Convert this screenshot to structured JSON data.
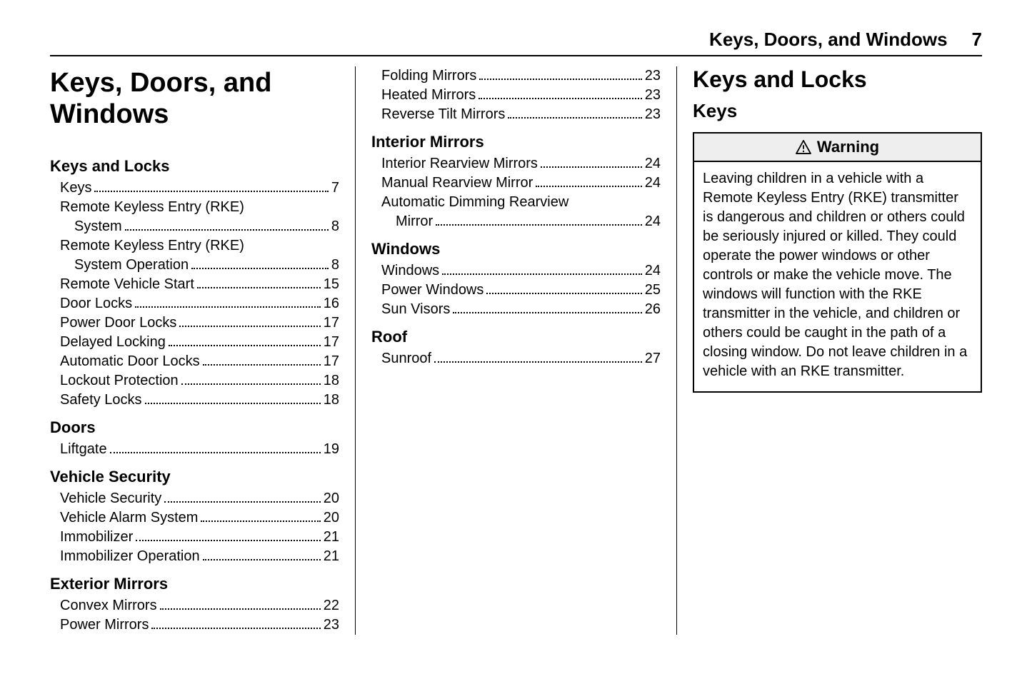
{
  "header": {
    "title": "Keys, Doors, and Windows",
    "page": "7"
  },
  "chapter_title": "Keys, Doors, and Windows",
  "toc": {
    "col1": [
      {
        "heading": "Keys and Locks",
        "items": [
          {
            "label": "Keys",
            "page": "7"
          },
          {
            "label_line1": "Remote Keyless Entry (RKE)",
            "label_line2": "System",
            "page": "8"
          },
          {
            "label_line1": "Remote Keyless Entry (RKE)",
            "label_line2": "System Operation",
            "page": "8"
          },
          {
            "label": "Remote Vehicle Start",
            "page": "15"
          },
          {
            "label": "Door Locks",
            "page": "16"
          },
          {
            "label": "Power Door Locks",
            "page": "17"
          },
          {
            "label": "Delayed Locking",
            "page": "17"
          },
          {
            "label": "Automatic Door Locks",
            "page": "17"
          },
          {
            "label": "Lockout Protection",
            "page": "18"
          },
          {
            "label": "Safety Locks",
            "page": "18"
          }
        ]
      },
      {
        "heading": "Doors",
        "items": [
          {
            "label": "Liftgate",
            "page": "19"
          }
        ]
      },
      {
        "heading": "Vehicle Security",
        "items": [
          {
            "label": "Vehicle Security",
            "page": "20"
          },
          {
            "label": "Vehicle Alarm System",
            "page": "20"
          },
          {
            "label": "Immobilizer",
            "page": "21"
          },
          {
            "label": "Immobilizer Operation",
            "page": "21"
          }
        ]
      },
      {
        "heading": "Exterior Mirrors",
        "items": [
          {
            "label": "Convex Mirrors",
            "page": "22"
          },
          {
            "label": "Power Mirrors",
            "page": "23"
          }
        ]
      }
    ],
    "col2_top": [
      {
        "label": "Folding Mirrors",
        "page": "23"
      },
      {
        "label": "Heated Mirrors",
        "page": "23"
      },
      {
        "label": "Reverse Tilt Mirrors",
        "page": "23"
      }
    ],
    "col2": [
      {
        "heading": "Interior Mirrors",
        "items": [
          {
            "label": "Interior Rearview Mirrors",
            "page": "24"
          },
          {
            "label": "Manual Rearview Mirror",
            "page": "24"
          },
          {
            "label_line1": "Automatic Dimming Rearview",
            "label_line2": "Mirror",
            "page": "24"
          }
        ]
      },
      {
        "heading": "Windows",
        "items": [
          {
            "label": "Windows",
            "page": "24"
          },
          {
            "label": "Power Windows",
            "page": "25"
          },
          {
            "label": "Sun Visors",
            "page": "26"
          }
        ]
      },
      {
        "heading": "Roof",
        "items": [
          {
            "label": "Sunroof",
            "page": "27"
          }
        ]
      }
    ]
  },
  "col3": {
    "heading1": "Keys and Locks",
    "heading2": "Keys",
    "warning": {
      "label": "Warning",
      "body": "Leaving children in a vehicle with a Remote Keyless Entry (RKE) transmitter is dangerous and children or others could be seriously injured or killed. They could operate the power windows or other controls or make the vehicle move. The windows will function with the RKE transmitter in the vehicle, and children or others could be caught in the path of a closing window. Do not leave children in a vehicle with an RKE transmitter."
    }
  }
}
